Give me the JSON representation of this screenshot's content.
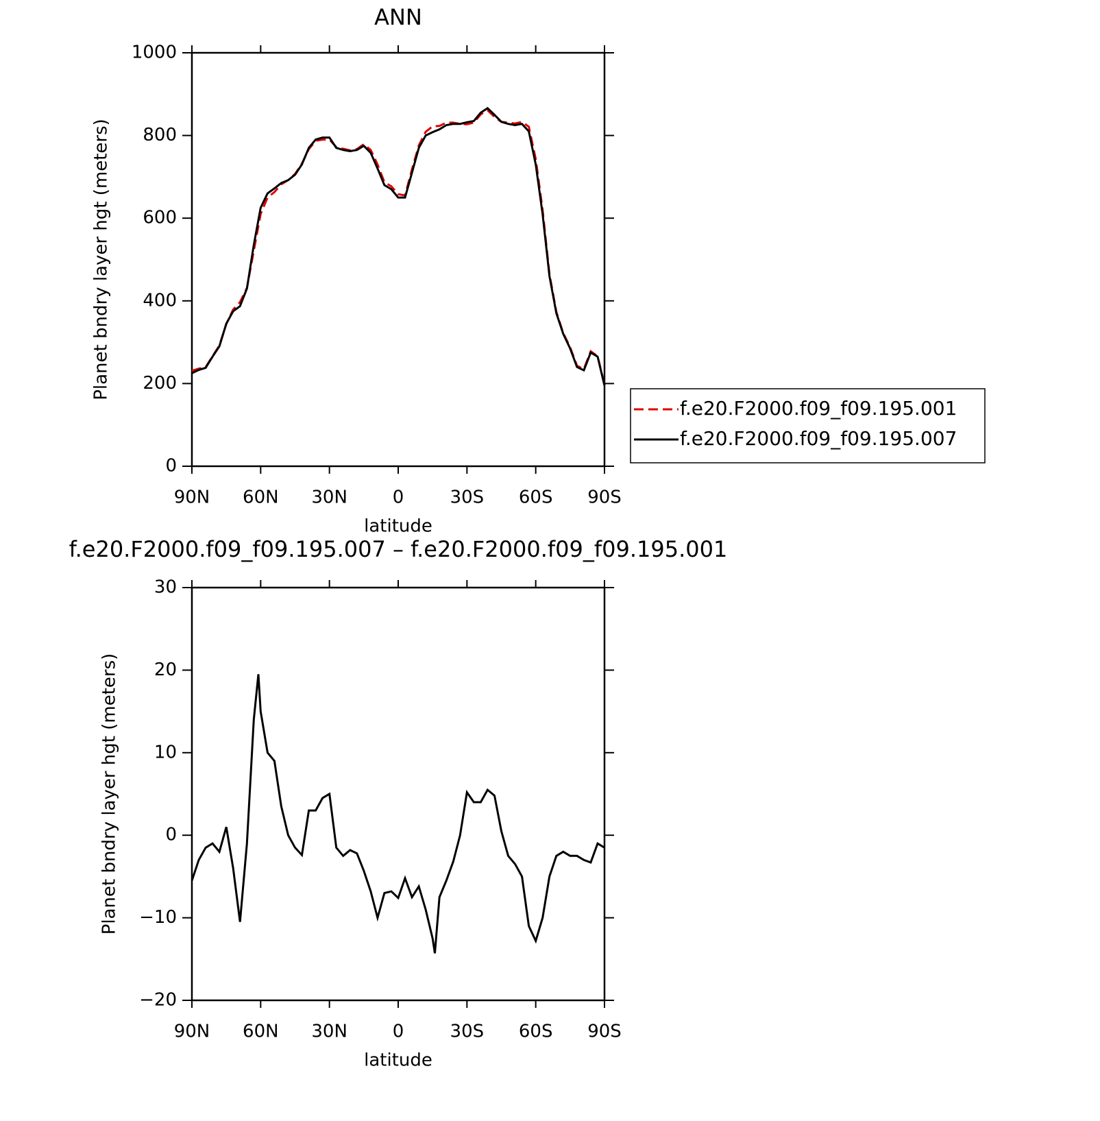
{
  "chart_data": [
    {
      "type": "line",
      "title": "ANN",
      "x_label": "latitude",
      "y_label": "Planet bndry layer hgt (meters)",
      "x": [
        90,
        87,
        84,
        81,
        78,
        75,
        72,
        69,
        66,
        63,
        60,
        57,
        54,
        51,
        48,
        45,
        42,
        39,
        36,
        33,
        30,
        27,
        24,
        21,
        18,
        15,
        12,
        9,
        6,
        3,
        0,
        -3,
        -6,
        -9,
        -12,
        -15,
        -18,
        -21,
        -24,
        -27,
        -30,
        -33,
        -36,
        -39,
        -42,
        -45,
        -48,
        -51,
        -54,
        -57,
        -60,
        -63,
        -66,
        -69,
        -72,
        -75,
        -78,
        -81,
        -84,
        -87,
        -90
      ],
      "series": [
        {
          "name": "f.e20.F2000.f09_f09.195.001",
          "color": "#e00000",
          "dash": true,
          "values": [
            231,
            236,
            240,
            266,
            292,
            344,
            379,
            397,
            431,
            521,
            610,
            650,
            663,
            682,
            692,
            707,
            732,
            767,
            787,
            790,
            790,
            772,
            768,
            764,
            767,
            779,
            765,
            730,
            687,
            677,
            658,
            655,
            718,
            776,
            809,
            822,
            823,
            831,
            831,
            828,
            827,
            831,
            851,
            861,
            845,
            833,
            831,
            829,
            833,
            821,
            743,
            620,
            465,
            373,
            322,
            288,
            243,
            235,
            278,
            266,
            197
          ]
        },
        {
          "name": "f.e20.F2000.f09_f09.195.007",
          "color": "#000000",
          "dash": false,
          "values": [
            225,
            233,
            238,
            265,
            290,
            345,
            375,
            387,
            430,
            535,
            625,
            660,
            672,
            685,
            692,
            705,
            730,
            770,
            790,
            795,
            795,
            770,
            765,
            762,
            765,
            775,
            758,
            720,
            680,
            670,
            650,
            650,
            710,
            770,
            800,
            808,
            815,
            825,
            828,
            828,
            832,
            835,
            855,
            866,
            850,
            833,
            828,
            825,
            828,
            810,
            730,
            610,
            460,
            370,
            320,
            285,
            240,
            232,
            275,
            265,
            195
          ]
        }
      ],
      "xlim": [
        90,
        -90
      ],
      "xticks": [
        {
          "value": 90,
          "label": "90N"
        },
        {
          "value": 60,
          "label": "60N"
        },
        {
          "value": 30,
          "label": "30N"
        },
        0,
        {
          "value": -30,
          "label": "30S"
        },
        {
          "value": -60,
          "label": "60S"
        },
        {
          "value": -90,
          "label": "90S"
        }
      ],
      "ylim": [
        0,
        1000
      ],
      "yticks": [
        0,
        200,
        400,
        600,
        800,
        1000
      ]
    },
    {
      "type": "line",
      "title": "f.e20.F2000.f09_f09.195.007 – f.e20.F2000.f09_f09.195.001",
      "x_label": "latitude",
      "y_label": "Planet bndry layer hgt (meters)",
      "x": [
        90,
        87,
        84,
        81,
        78,
        75,
        72,
        69,
        66,
        63,
        61,
        60,
        57,
        54,
        51,
        48,
        45,
        42,
        39,
        36,
        33,
        30,
        27,
        24,
        21,
        18,
        15,
        12,
        9,
        6,
        3,
        0,
        -3,
        -6,
        -9,
        -12,
        -15,
        -16,
        -18,
        -21,
        -24,
        -27,
        -30,
        -33,
        -36,
        -39,
        -42,
        -45,
        -48,
        -51,
        -54,
        -57,
        -60,
        -63,
        -66,
        -69,
        -72,
        -75,
        -78,
        -81,
        -84,
        -87,
        -90
      ],
      "color": "#000000",
      "values": [
        -5.5,
        -3,
        -1.5,
        -1,
        -2,
        1,
        -4,
        -10.5,
        -1,
        14,
        19.5,
        15,
        10,
        9,
        3.5,
        0,
        -1.5,
        -2.4,
        3,
        3,
        4.5,
        5,
        -1.5,
        -2.5,
        -1.8,
        -2.2,
        -4.3,
        -6.8,
        -10,
        -7,
        -6.8,
        -7.6,
        -5.2,
        -7.5,
        -6.2,
        -9,
        -12.5,
        -14.3,
        -7.5,
        -5.5,
        -3.2,
        0,
        5.2,
        4,
        4,
        5.5,
        4.8,
        0.5,
        -2.5,
        -3.5,
        -5,
        -11,
        -12.8,
        -10,
        -5,
        -2.5,
        -2,
        -2.5,
        -2.5,
        -3,
        -3.3,
        -1,
        -1.5
      ],
      "xlim": [
        90,
        -90
      ],
      "xticks": [
        {
          "value": 90,
          "label": "90N"
        },
        {
          "value": 60,
          "label": "60N"
        },
        {
          "value": 30,
          "label": "30N"
        },
        0,
        {
          "value": -30,
          "label": "30S"
        },
        {
          "value": -60,
          "label": "60S"
        },
        {
          "value": -90,
          "label": "90S"
        }
      ],
      "ylim": [
        -20,
        30
      ],
      "yticks": [
        {
          "value": -20,
          "label": "−20"
        },
        {
          "value": -10,
          "label": "−10"
        },
        0,
        10,
        20,
        30
      ]
    }
  ]
}
